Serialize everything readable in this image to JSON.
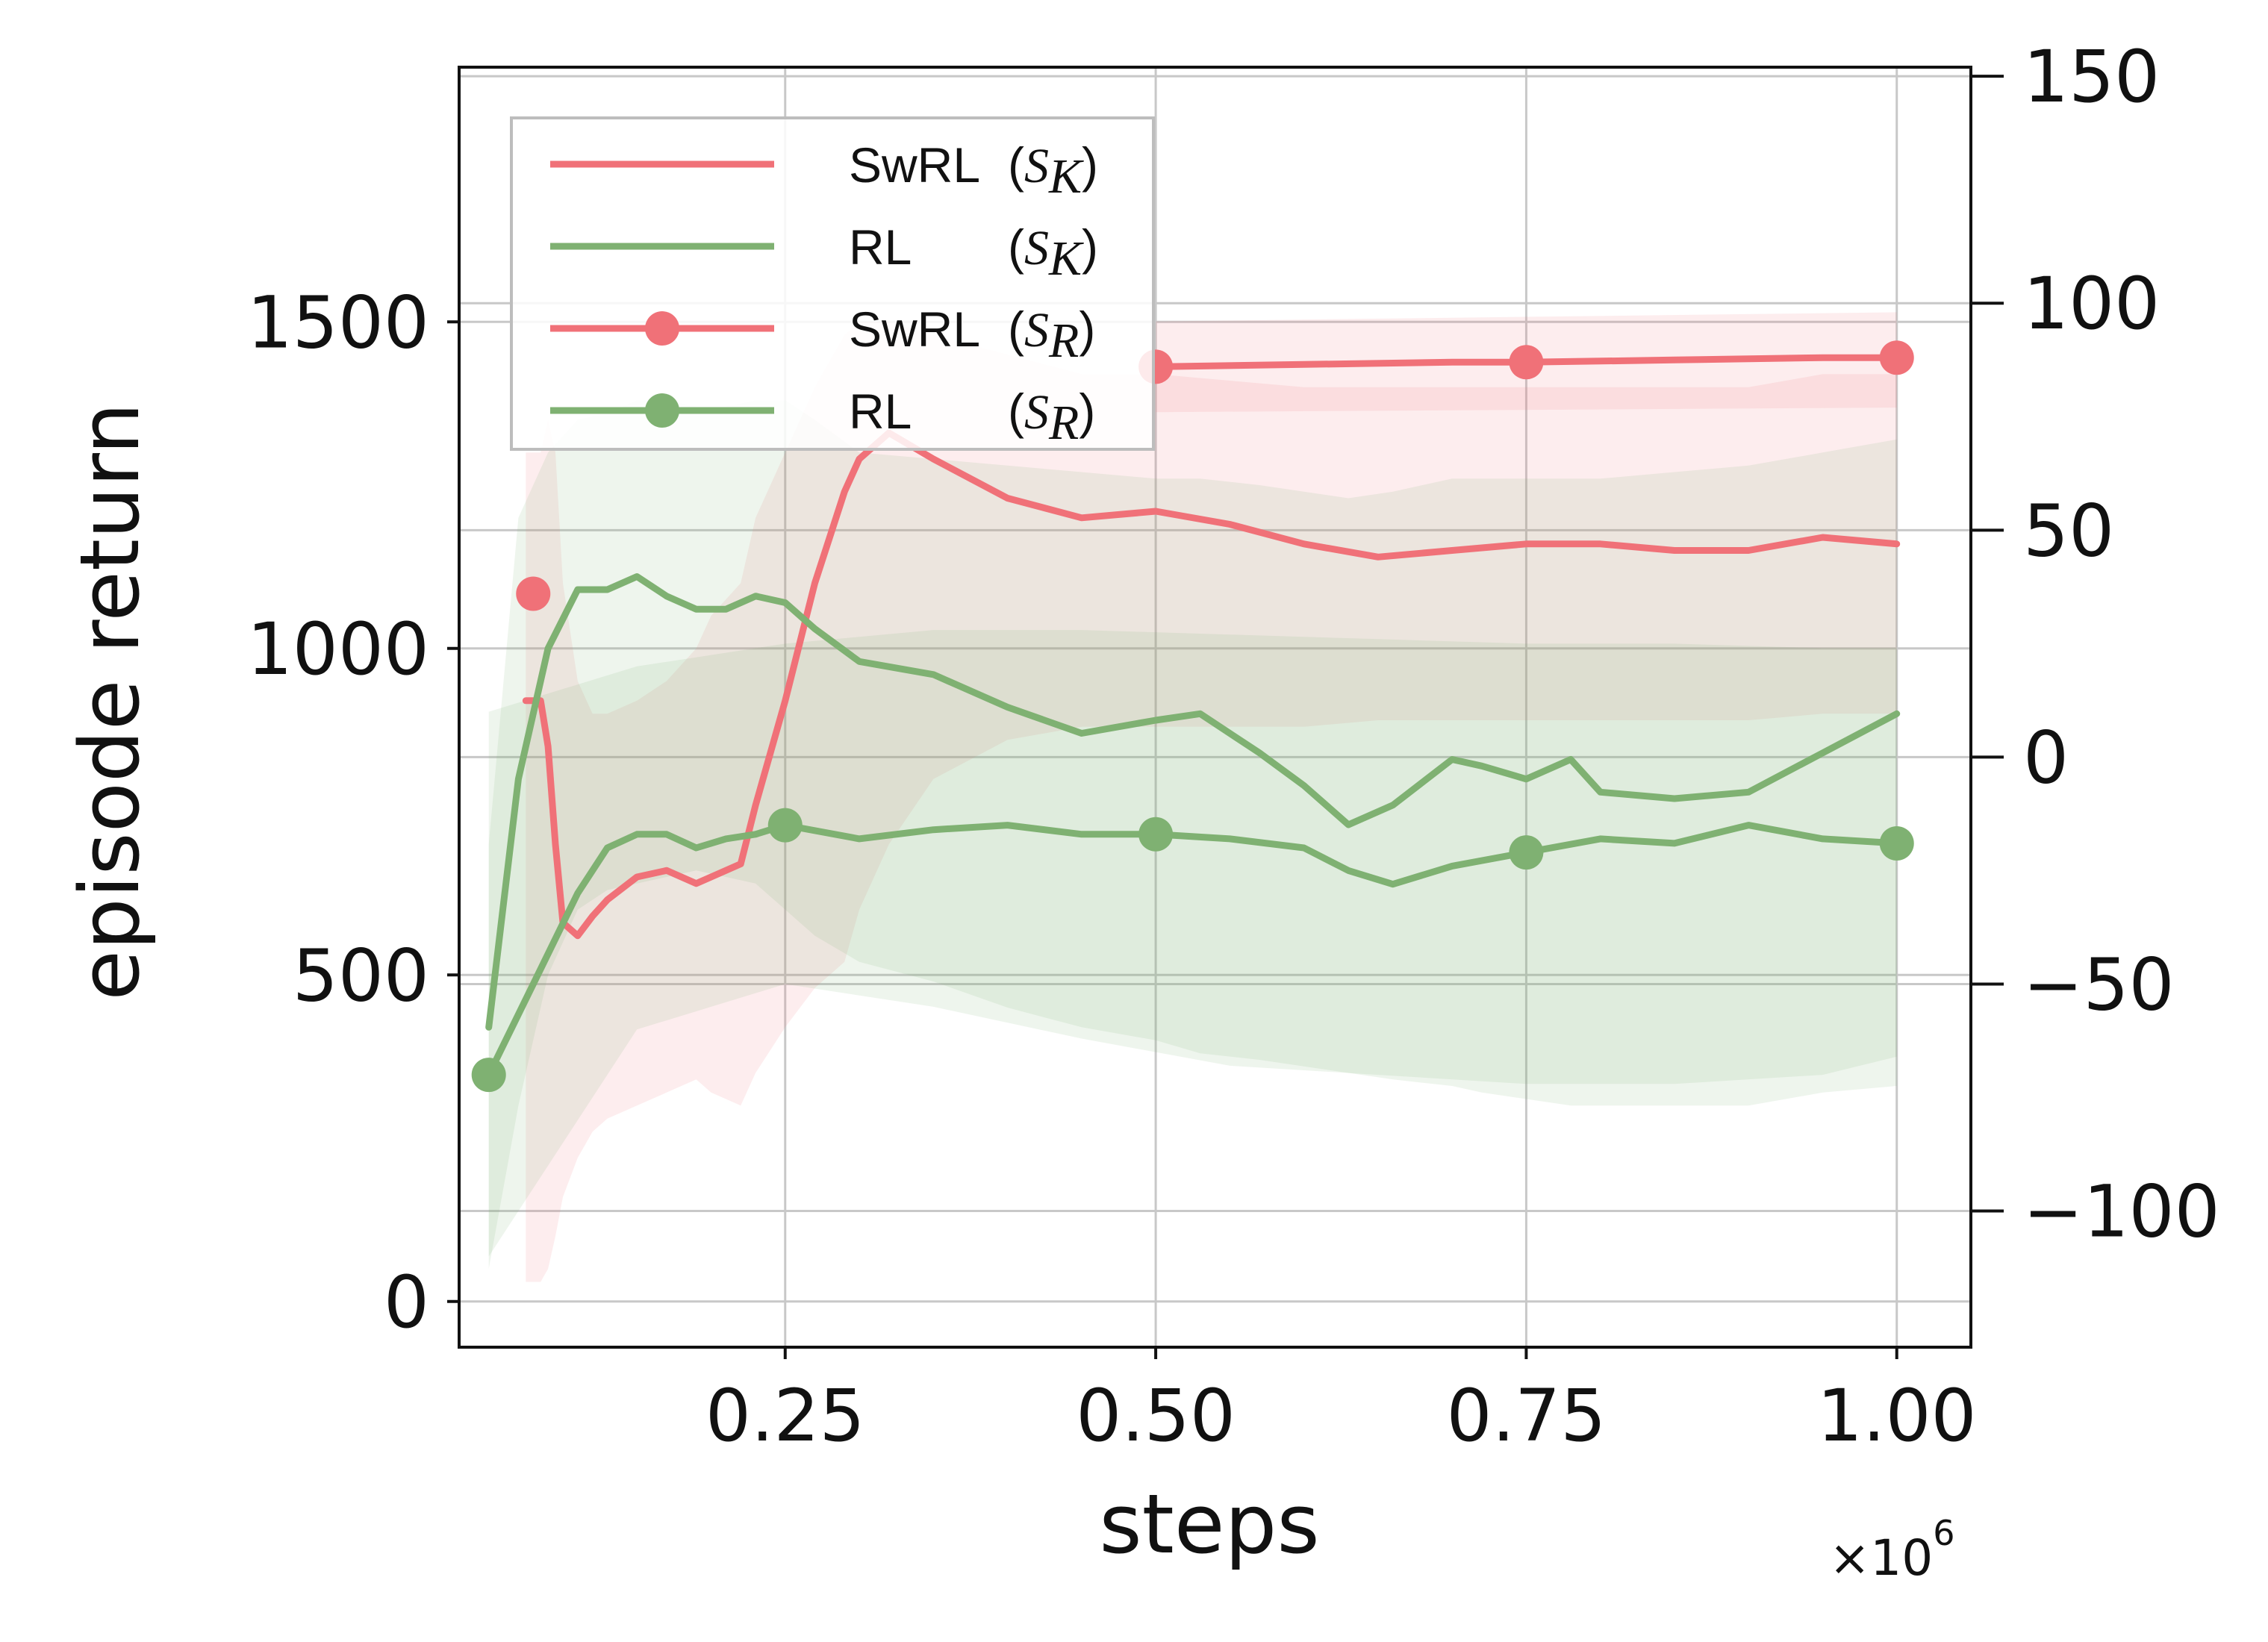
{
  "chart_data": {
    "type": "line",
    "xlabel": "steps",
    "x_multiplier": "×10",
    "x_multiplier_exp": "6",
    "ylabel_left": "episode return",
    "xlim": [
      0.03,
      1.05
    ],
    "ylim_left": [
      -70,
      1890
    ],
    "ylim_right": [
      -130,
      152
    ],
    "x_ticks": [
      0.25,
      0.5,
      0.75,
      1.0
    ],
    "x_tick_labels": [
      "0.25",
      "0.50",
      "0.75",
      "1.00"
    ],
    "y_left_ticks": [
      0,
      500,
      1000,
      1500
    ],
    "y_left_tick_labels": [
      "0",
      "500",
      "1000",
      "1500"
    ],
    "y_right_ticks": [
      -100,
      -50,
      0,
      50,
      100,
      150
    ],
    "y_right_tick_labels": [
      "−100",
      "−50",
      "0",
      "50",
      "100",
      "150"
    ],
    "grid": true,
    "legend_position": "top-left",
    "colors": {
      "swrl": "#f07178",
      "rl": "#7fb172"
    },
    "series": [
      {
        "name": "SwRL",
        "label_prefix": "(",
        "label_script": "S",
        "label_sub": "K",
        "label_suffix": ")",
        "axis": "left",
        "marker": false,
        "color": "#f07178",
        "x": [
          0.075,
          0.085,
          0.09,
          0.095,
          0.1,
          0.11,
          0.12,
          0.13,
          0.15,
          0.17,
          0.19,
          0.2,
          0.22,
          0.23,
          0.25,
          0.27,
          0.29,
          0.3,
          0.32,
          0.35,
          0.4,
          0.45,
          0.5,
          0.55,
          0.6,
          0.65,
          0.7,
          0.75,
          0.8,
          0.85,
          0.9,
          0.95,
          1.0
        ],
        "y": [
          920,
          920,
          850,
          700,
          580,
          560,
          590,
          615,
          650,
          660,
          640,
          650,
          670,
          760,
          920,
          1100,
          1240,
          1290,
          1330,
          1290,
          1230,
          1200,
          1210,
          1190,
          1160,
          1140,
          1150,
          1160,
          1160,
          1150,
          1150,
          1170,
          1160
        ],
        "band_lower": [
          30,
          30,
          50,
          100,
          160,
          220,
          260,
          280,
          300,
          320,
          340,
          320,
          300,
          350,
          420,
          480,
          520,
          600,
          700,
          800,
          860,
          880,
          880,
          880,
          880,
          890,
          890,
          890,
          890,
          890,
          890,
          900,
          900
        ],
        "band_upper": [
          1300,
          1300,
          1350,
          1300,
          1100,
          950,
          900,
          900,
          920,
          950,
          1000,
          1050,
          1100,
          1200,
          1300,
          1400,
          1480,
          1500,
          1500,
          1480,
          1450,
          1420,
          1420,
          1410,
          1400,
          1400,
          1400,
          1400,
          1400,
          1400,
          1400,
          1420,
          1420
        ]
      },
      {
        "name": "RL",
        "label_prefix": "(",
        "label_script": "S",
        "label_sub": "K",
        "label_suffix": ")",
        "axis": "left",
        "marker": false,
        "color": "#7fb172",
        "x": [
          0.05,
          0.07,
          0.09,
          0.11,
          0.13,
          0.15,
          0.17,
          0.19,
          0.21,
          0.23,
          0.25,
          0.27,
          0.3,
          0.35,
          0.4,
          0.45,
          0.5,
          0.53,
          0.57,
          0.6,
          0.63,
          0.66,
          0.7,
          0.72,
          0.75,
          0.78,
          0.8,
          0.85,
          0.9,
          0.95,
          1.0
        ],
        "y": [
          420,
          800,
          1000,
          1090,
          1090,
          1110,
          1080,
          1060,
          1060,
          1080,
          1070,
          1030,
          980,
          960,
          910,
          870,
          890,
          900,
          840,
          790,
          730,
          760,
          830,
          820,
          800,
          830,
          780,
          770,
          780,
          840,
          900
        ],
        "band_lower": [
          50,
          300,
          500,
          600,
          630,
          640,
          650,
          660,
          650,
          640,
          600,
          560,
          520,
          490,
          450,
          420,
          400,
          380,
          370,
          360,
          350,
          340,
          330,
          320,
          310,
          300,
          300,
          300,
          300,
          320,
          330
        ],
        "band_upper": [
          700,
          1200,
          1300,
          1350,
          1360,
          1380,
          1380,
          1370,
          1370,
          1380,
          1380,
          1350,
          1300,
          1290,
          1280,
          1270,
          1260,
          1260,
          1250,
          1240,
          1230,
          1240,
          1260,
          1260,
          1260,
          1260,
          1260,
          1270,
          1280,
          1300,
          1320
        ]
      },
      {
        "name": "SwRL",
        "label_prefix": "(",
        "label_script": "S",
        "label_sub": "R",
        "label_suffix": ")",
        "axis": "right",
        "marker": true,
        "color": "#f07178",
        "x": [
          0.08,
          0.5,
          0.75,
          1.0
        ],
        "y": [
          36,
          86,
          87,
          88
        ],
        "line_x": [
          0.5,
          0.6,
          0.7,
          0.75,
          0.85,
          0.95,
          1.0
        ],
        "line_y": [
          86,
          86.5,
          87,
          87,
          87.5,
          88,
          88
        ],
        "band_x": [
          0.5,
          1.0
        ],
        "band_lower": [
          76,
          77
        ],
        "band_upper": [
          96,
          98
        ]
      },
      {
        "name": "RL",
        "label_prefix": "(",
        "label_script": "S",
        "label_sub": "R",
        "label_suffix": ")",
        "axis": "right",
        "marker": true,
        "color": "#7fb172",
        "x": [
          0.05,
          0.25,
          0.5,
          0.75,
          1.0
        ],
        "y": [
          -70,
          -15,
          -17,
          -21,
          -19
        ],
        "line_x": [
          0.05,
          0.08,
          0.11,
          0.13,
          0.15,
          0.17,
          0.19,
          0.21,
          0.23,
          0.25,
          0.3,
          0.35,
          0.4,
          0.45,
          0.5,
          0.55,
          0.6,
          0.63,
          0.66,
          0.7,
          0.75,
          0.8,
          0.85,
          0.9,
          0.95,
          1.0
        ],
        "line_y": [
          -70,
          -50,
          -30,
          -20,
          -17,
          -17,
          -20,
          -18,
          -17,
          -15,
          -18,
          -16,
          -15,
          -17,
          -17,
          -18,
          -20,
          -25,
          -28,
          -24,
          -21,
          -18,
          -19,
          -15,
          -18,
          -19
        ],
        "band_x": [
          0.05,
          0.15,
          0.25,
          0.35,
          0.45,
          0.55,
          0.65,
          0.75,
          0.85,
          0.95,
          1.0
        ],
        "band_lower": [
          -110,
          -60,
          -50,
          -55,
          -62,
          -68,
          -70,
          -72,
          -72,
          -70,
          -66
        ],
        "band_upper": [
          10,
          20,
          25,
          28,
          28,
          27,
          26,
          25,
          25,
          24,
          24
        ]
      }
    ]
  }
}
